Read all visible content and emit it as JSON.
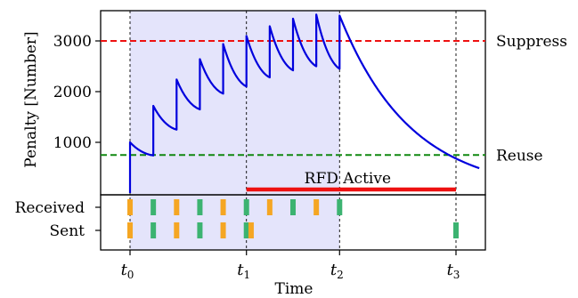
{
  "chart_data": {
    "type": "line",
    "xlabel": "Time",
    "ylabel": "Penalty [Number]",
    "xlim": [
      0,
      15
    ],
    "ylim": [
      0,
      3600
    ],
    "yticks": [
      1000,
      2000,
      3000
    ],
    "xticks": [
      {
        "label": "t",
        "sub": "0",
        "x": 0
      },
      {
        "label": "t",
        "sub": "1",
        "x": 5
      },
      {
        "label": "t",
        "sub": "2",
        "x": 9
      },
      {
        "label": "t",
        "sub": "3",
        "x": 14
      }
    ],
    "colors": {
      "penalty": "#0000dd",
      "suppress": "#ee1111",
      "reuse": "#118811",
      "shade": "#e4e4fb",
      "received_or_sent_orange": "#f5a623",
      "received_or_sent_green": "#3cb371",
      "rfd_bar": "#ee1111"
    },
    "thresholds": [
      {
        "name": "Suppress",
        "value": 3000
      },
      {
        "name": "Reuse",
        "value": 750
      }
    ],
    "shaded_region": [
      0,
      9
    ],
    "rfd_active": {
      "label": "RFD Active",
      "start": 5,
      "end": 14
    },
    "penalty_series": {
      "name": "Penalty",
      "x": [
        0,
        0,
        1,
        1,
        2,
        2,
        3,
        3,
        4,
        4,
        5,
        5,
        6,
        6,
        7,
        7,
        8,
        8,
        9,
        9
      ],
      "y": [
        0,
        1000,
        740,
        1720,
        1250,
        2240,
        1650,
        2640,
        1960,
        2940,
        2100,
        3100,
        2280,
        3290,
        2420,
        3440,
        2500,
        3520,
        2450,
        3500
      ],
      "decay_after": {
        "start_x": 9,
        "start_y": 3500,
        "end_x": 15,
        "end_y": 490
      }
    },
    "tracks": [
      {
        "name": "Received",
        "events": [
          {
            "x": 0,
            "color": "orange"
          },
          {
            "x": 1,
            "color": "green"
          },
          {
            "x": 2,
            "color": "orange"
          },
          {
            "x": 3,
            "color": "green"
          },
          {
            "x": 4,
            "color": "orange"
          },
          {
            "x": 5,
            "color": "green"
          },
          {
            "x": 6,
            "color": "orange"
          },
          {
            "x": 7,
            "color": "green"
          },
          {
            "x": 8,
            "color": "orange"
          },
          {
            "x": 9,
            "color": "green"
          }
        ]
      },
      {
        "name": "Sent",
        "events": [
          {
            "x": 0,
            "color": "orange"
          },
          {
            "x": 1,
            "color": "green"
          },
          {
            "x": 2,
            "color": "orange"
          },
          {
            "x": 3,
            "color": "green"
          },
          {
            "x": 4,
            "color": "orange"
          },
          {
            "x": 5,
            "color": "green"
          },
          {
            "x": 5.2,
            "color": "orange"
          },
          {
            "x": 14,
            "color": "green"
          }
        ]
      }
    ]
  }
}
